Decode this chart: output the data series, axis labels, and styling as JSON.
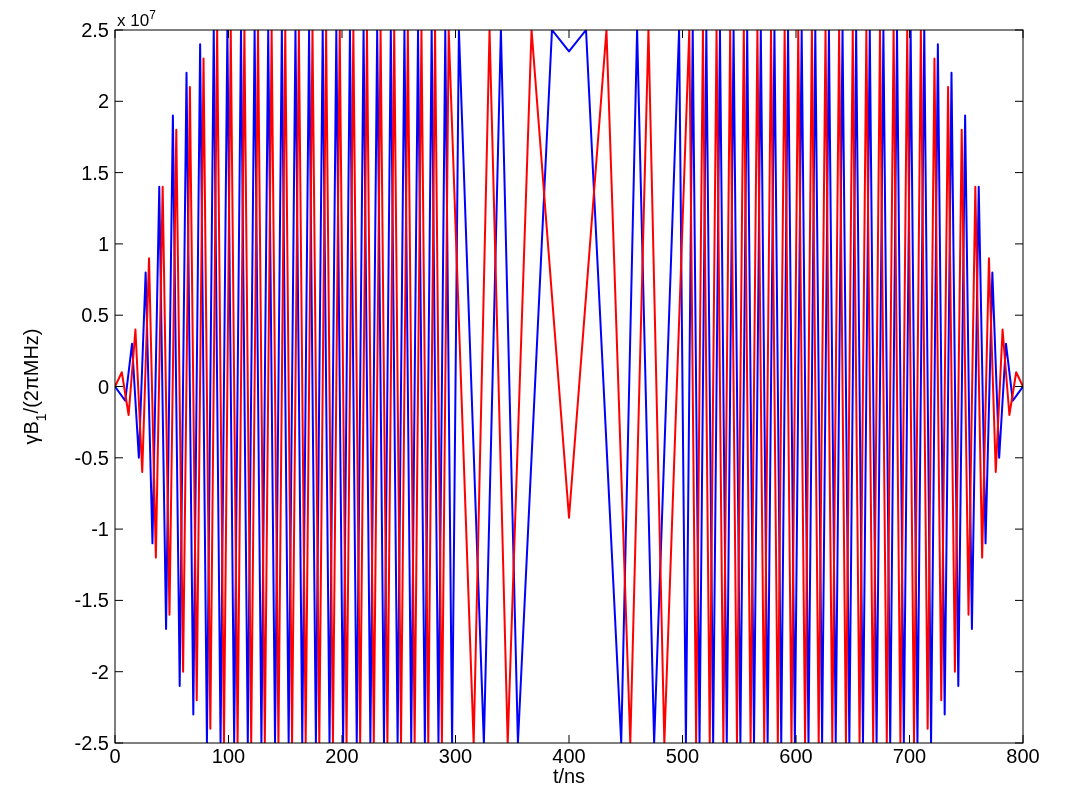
{
  "chart_data": {
    "type": "line",
    "xlabel": "t/ns",
    "ylabel": "γB$_{1}$/(2πMHz)",
    "annotations": [
      "x 10$^{7}$"
    ],
    "xlim": [
      0,
      800
    ],
    "xticks": [
      0,
      100,
      200,
      300,
      400,
      500,
      600,
      700,
      800
    ],
    "ylim": [
      -2.5,
      2.5
    ],
    "yticks": [
      -2.5,
      -2,
      -1.5,
      -1,
      -0.5,
      0,
      0.5,
      1,
      1.5,
      2,
      2.5
    ],
    "grid": false,
    "line_style": "solid",
    "marker": "none",
    "series": [
      {
        "color": "#0000ff",
        "x": [
          0,
          9,
          15,
          21,
          27,
          33,
          39,
          45,
          51,
          57,
          63,
          69,
          75,
          81,
          87,
          93,
          99,
          105,
          111,
          117,
          123,
          129,
          135,
          141,
          147,
          153,
          159,
          165,
          171,
          177,
          183,
          189,
          195,
          201,
          207,
          213,
          219,
          225,
          231,
          237,
          243,
          249,
          255,
          261,
          267,
          273,
          279,
          285,
          291,
          297,
          303,
          325,
          340,
          355,
          385,
          400,
          415,
          446,
          460,
          475,
          497,
          503,
          509,
          515,
          521,
          527,
          533,
          539,
          545,
          551,
          557,
          563,
          569,
          575,
          581,
          587,
          593,
          599,
          605,
          611,
          617,
          623,
          629,
          635,
          641,
          647,
          653,
          659,
          665,
          671,
          677,
          683,
          689,
          695,
          701,
          707,
          713,
          719,
          725,
          731,
          737,
          743,
          749,
          755,
          761,
          767,
          773,
          779,
          785,
          791,
          800
        ],
        "values": [
          0,
          -0.1,
          0.3,
          -0.5,
          0.8,
          -1.1,
          1.4,
          -1.7,
          1.9,
          -2.1,
          2.2,
          -2.3,
          2.4,
          -2.5,
          2.5,
          -2.5,
          2.5,
          -2.5,
          2.5,
          -2.5,
          2.5,
          -2.5,
          2.5,
          -2.5,
          2.5,
          -2.5,
          2.5,
          -2.5,
          2.5,
          -2.5,
          2.5,
          -2.5,
          2.5,
          -2.5,
          2.5,
          -2.5,
          2.5,
          -2.5,
          2.5,
          -2.5,
          2.5,
          -2.5,
          2.5,
          -2.5,
          2.5,
          -2.5,
          2.5,
          -2.5,
          2.5,
          -2.5,
          2.5,
          -2.5,
          2.5,
          -2.5,
          2.5,
          2.35,
          2.5,
          -2.5,
          2.5,
          -2.5,
          2.5,
          -2.5,
          2.5,
          -2.5,
          2.5,
          -2.5,
          2.5,
          -2.5,
          2.5,
          -2.5,
          2.5,
          -2.5,
          2.5,
          -2.5,
          2.5,
          -2.5,
          2.5,
          -2.5,
          2.5,
          -2.5,
          2.5,
          -2.5,
          2.5,
          -2.5,
          2.5,
          -2.5,
          2.5,
          -2.5,
          2.5,
          -2.5,
          2.5,
          -2.5,
          2.5,
          -2.5,
          2.5,
          -2.5,
          2.5,
          -2.5,
          2.4,
          -2.3,
          2.2,
          -2.1,
          1.9,
          -1.7,
          1.4,
          -1.1,
          0.8,
          -0.5,
          0.3,
          -0.1,
          0
        ]
      },
      {
        "color": "#ff0000",
        "x": [
          0,
          6,
          12,
          18,
          24,
          30,
          36,
          42,
          48,
          54,
          60,
          66,
          72,
          78,
          84,
          90,
          96,
          102,
          108,
          114,
          120,
          126,
          132,
          138,
          144,
          150,
          156,
          162,
          168,
          174,
          180,
          186,
          192,
          198,
          204,
          210,
          216,
          222,
          228,
          234,
          240,
          246,
          252,
          258,
          264,
          270,
          276,
          282,
          288,
          294,
          316,
          330,
          346,
          367,
          400,
          433,
          454,
          470,
          484,
          506,
          512,
          518,
          524,
          530,
          536,
          542,
          548,
          554,
          560,
          566,
          572,
          578,
          584,
          590,
          596,
          602,
          608,
          614,
          620,
          626,
          632,
          638,
          644,
          650,
          656,
          662,
          668,
          674,
          680,
          686,
          692,
          698,
          704,
          710,
          716,
          722,
          728,
          734,
          740,
          746,
          752,
          758,
          764,
          770,
          776,
          782,
          788,
          794,
          800
        ],
        "values": [
          0,
          0.1,
          -0.2,
          0.4,
          -0.6,
          0.9,
          -1.2,
          1.4,
          -1.6,
          1.8,
          -2,
          2.1,
          -2.2,
          2.3,
          -2.4,
          2.5,
          -2.5,
          2.5,
          -2.5,
          2.5,
          -2.5,
          2.5,
          -2.5,
          2.5,
          -2.5,
          2.5,
          -2.5,
          2.5,
          -2.5,
          2.5,
          -2.5,
          2.5,
          -2.5,
          2.5,
          -2.5,
          2.5,
          -2.5,
          2.5,
          -2.5,
          2.5,
          -2.5,
          2.5,
          -2.5,
          2.5,
          -2.5,
          2.5,
          -2.5,
          2.5,
          -2.5,
          2.5,
          -2.5,
          2.5,
          -2.5,
          2.5,
          -0.92,
          2.5,
          -2.5,
          2.5,
          -2.5,
          2.5,
          -2.5,
          2.5,
          -2.5,
          2.5,
          -2.5,
          2.5,
          -2.5,
          2.5,
          -2.5,
          2.5,
          -2.5,
          2.5,
          -2.5,
          2.5,
          -2.5,
          2.5,
          -2.5,
          2.5,
          -2.5,
          2.5,
          -2.5,
          2.5,
          -2.5,
          2.5,
          -2.5,
          2.5,
          -2.5,
          2.5,
          -2.5,
          2.5,
          -2.5,
          2.5,
          -2.5,
          2.5,
          -2.4,
          2.3,
          -2.2,
          2.1,
          -2,
          1.8,
          -1.6,
          1.4,
          -1.2,
          0.9,
          -0.6,
          0.4,
          -0.2,
          0.1,
          0
        ]
      }
    ]
  }
}
